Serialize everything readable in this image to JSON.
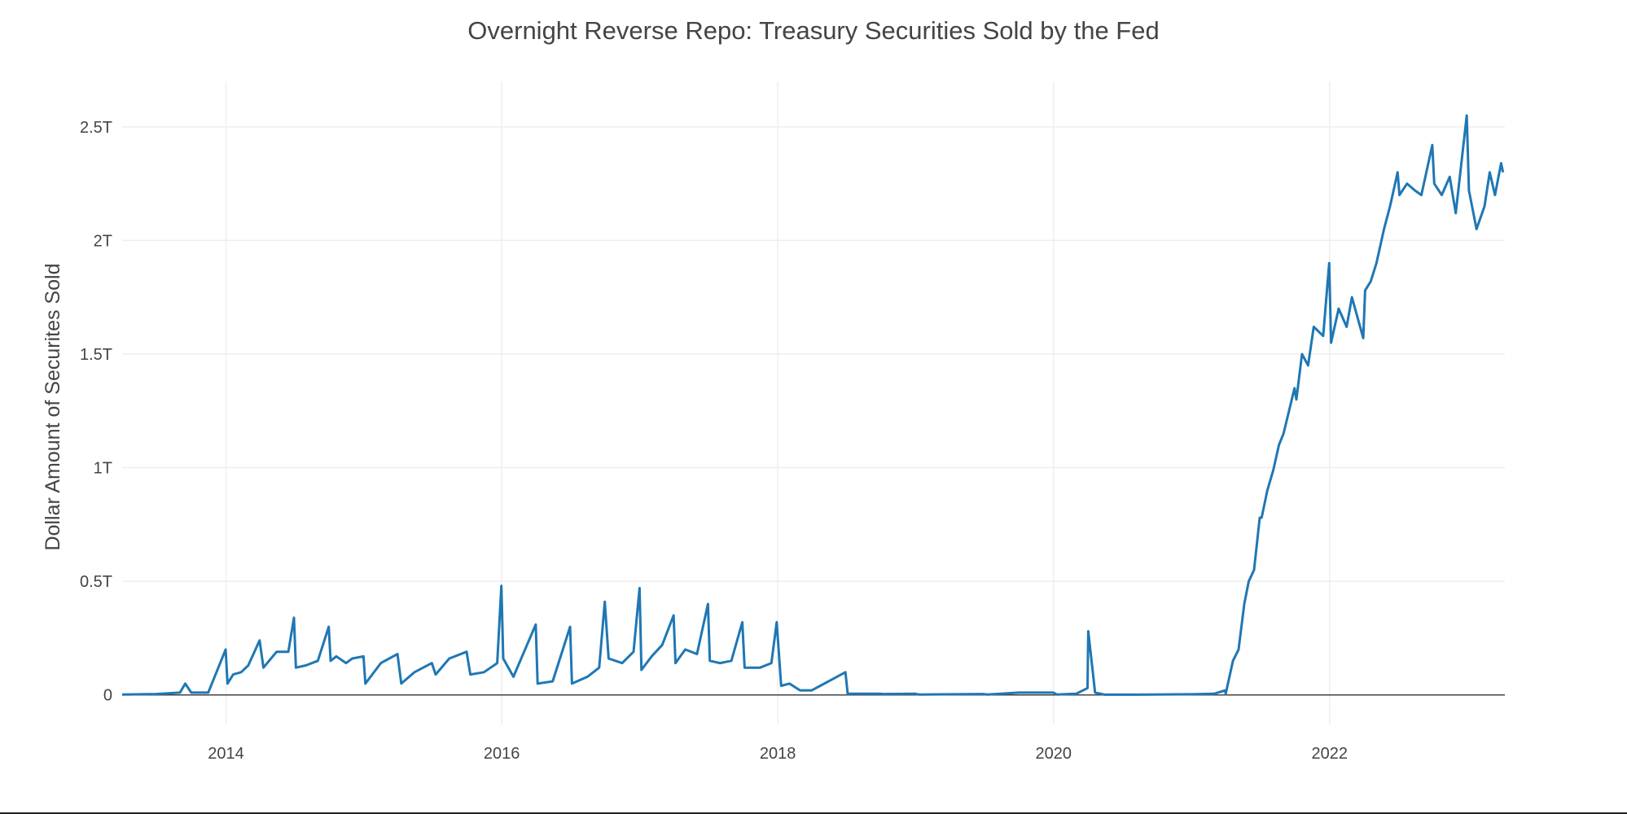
{
  "chart_data": {
    "type": "line",
    "title": "Overnight Reverse Repo: Treasury Securities Sold by the Fed",
    "xlabel": "",
    "ylabel": "Dollar Amount of Securites Sold",
    "x_ticks": [
      "2014",
      "2016",
      "2018",
      "2020",
      "2022"
    ],
    "y_ticks": [
      {
        "value": 0,
        "label": "0"
      },
      {
        "value": 0.5,
        "label": "0.5T"
      },
      {
        "value": 1,
        "label": "1T"
      },
      {
        "value": 1.5,
        "label": "1.5T"
      },
      {
        "value": 2,
        "label": "2T"
      },
      {
        "value": 2.5,
        "label": "2.5T"
      }
    ],
    "xlim": [
      "2013-04-01",
      "2023-04-10"
    ],
    "ylim": [
      -0.13,
      2.7
    ],
    "y_unit": "trillions of dollars",
    "grid": true,
    "legend": "none",
    "color": "#1f77b4",
    "series": [
      {
        "x": [
          "2013-04-01",
          "2013-07-01",
          "2013-09-01",
          "2013-09-15",
          "2013-10-01",
          "2013-11-15",
          "2013-12-31",
          "2014-01-05",
          "2014-01-20",
          "2014-02-10",
          "2014-03-01",
          "2014-03-31",
          "2014-04-10",
          "2014-05-15",
          "2014-06-15",
          "2014-06-30",
          "2014-07-05",
          "2014-08-01",
          "2014-09-01",
          "2014-09-30",
          "2014-10-05",
          "2014-10-20",
          "2014-11-15",
          "2014-12-01",
          "2014-12-31",
          "2015-01-05",
          "2015-02-15",
          "2015-03-31",
          "2015-04-10",
          "2015-05-15",
          "2015-06-30",
          "2015-07-10",
          "2015-08-15",
          "2015-09-30",
          "2015-10-10",
          "2015-11-15",
          "2015-12-20",
          "2015-12-31",
          "2016-01-05",
          "2016-02-01",
          "2016-03-31",
          "2016-04-05",
          "2016-05-15",
          "2016-06-30",
          "2016-07-05",
          "2016-08-15",
          "2016-09-15",
          "2016-09-30",
          "2016-10-10",
          "2016-11-15",
          "2016-12-15",
          "2016-12-31",
          "2017-01-05",
          "2017-02-01",
          "2017-03-01",
          "2017-03-31",
          "2017-04-05",
          "2017-05-01",
          "2017-06-01",
          "2017-06-30",
          "2017-07-05",
          "2017-08-01",
          "2017-08-31",
          "2017-09-29",
          "2017-10-05",
          "2017-11-15",
          "2017-12-15",
          "2017-12-29",
          "2018-01-10",
          "2018-02-01",
          "2018-03-01",
          "2018-04-01",
          "2018-06-29",
          "2018-07-05",
          "2018-09-28",
          "2018-10-05",
          "2018-12-31",
          "2019-01-10",
          "2019-06-28",
          "2019-07-10",
          "2019-10-01",
          "2019-12-31",
          "2020-01-10",
          "2020-03-01",
          "2020-03-31",
          "2020-04-02",
          "2020-04-20",
          "2020-05-15",
          "2020-08-01",
          "2021-01-01",
          "2021-03-01",
          "2021-03-31",
          "2021-04-01",
          "2021-04-20",
          "2021-05-05",
          "2021-05-20",
          "2021-06-01",
          "2021-06-15",
          "2021-06-30",
          "2021-07-05",
          "2021-07-20",
          "2021-08-05",
          "2021-08-20",
          "2021-09-01",
          "2021-09-30",
          "2021-10-05",
          "2021-10-20",
          "2021-11-05",
          "2021-11-20",
          "2021-12-15",
          "2021-12-31",
          "2022-01-05",
          "2022-01-25",
          "2022-02-15",
          "2022-03-01",
          "2022-03-31",
          "2022-04-05",
          "2022-04-20",
          "2022-05-05",
          "2022-05-25",
          "2022-06-10",
          "2022-06-30",
          "2022-07-05",
          "2022-07-25",
          "2022-08-15",
          "2022-09-01",
          "2022-09-30",
          "2022-10-05",
          "2022-10-25",
          "2022-11-15",
          "2022-12-01",
          "2022-12-30",
          "2023-01-05",
          "2023-01-25",
          "2023-02-15",
          "2023-03-01",
          "2023-03-15",
          "2023-03-31",
          "2023-04-05"
        ],
        "y": [
          0.002,
          0.004,
          0.01,
          0.05,
          0.01,
          0.01,
          0.2,
          0.05,
          0.09,
          0.1,
          0.13,
          0.24,
          0.12,
          0.19,
          0.19,
          0.34,
          0.12,
          0.13,
          0.15,
          0.3,
          0.15,
          0.17,
          0.14,
          0.16,
          0.17,
          0.05,
          0.14,
          0.18,
          0.05,
          0.1,
          0.14,
          0.09,
          0.16,
          0.19,
          0.09,
          0.1,
          0.14,
          0.48,
          0.16,
          0.08,
          0.31,
          0.05,
          0.06,
          0.3,
          0.05,
          0.08,
          0.12,
          0.41,
          0.16,
          0.14,
          0.19,
          0.47,
          0.11,
          0.17,
          0.22,
          0.35,
          0.14,
          0.2,
          0.18,
          0.4,
          0.15,
          0.14,
          0.15,
          0.32,
          0.12,
          0.12,
          0.14,
          0.32,
          0.04,
          0.05,
          0.02,
          0.02,
          0.1,
          0.005,
          0.005,
          0.004,
          0.005,
          0.002,
          0.004,
          0.002,
          0.01,
          0.01,
          0.002,
          0.005,
          0.03,
          0.28,
          0.01,
          0.001,
          0.001,
          0.003,
          0.005,
          0.02,
          0.005,
          0.15,
          0.2,
          0.4,
          0.5,
          0.55,
          0.78,
          0.78,
          0.9,
          0.99,
          1.1,
          1.15,
          1.35,
          1.3,
          1.5,
          1.45,
          1.62,
          1.58,
          1.9,
          1.55,
          1.7,
          1.62,
          1.75,
          1.57,
          1.78,
          1.82,
          1.9,
          2.05,
          2.15,
          2.3,
          2.2,
          2.25,
          2.22,
          2.2,
          2.42,
          2.25,
          2.2,
          2.28,
          2.12,
          2.55,
          2.22,
          2.05,
          2.15,
          2.3,
          2.2,
          2.34,
          2.3
        ]
      }
    ]
  }
}
